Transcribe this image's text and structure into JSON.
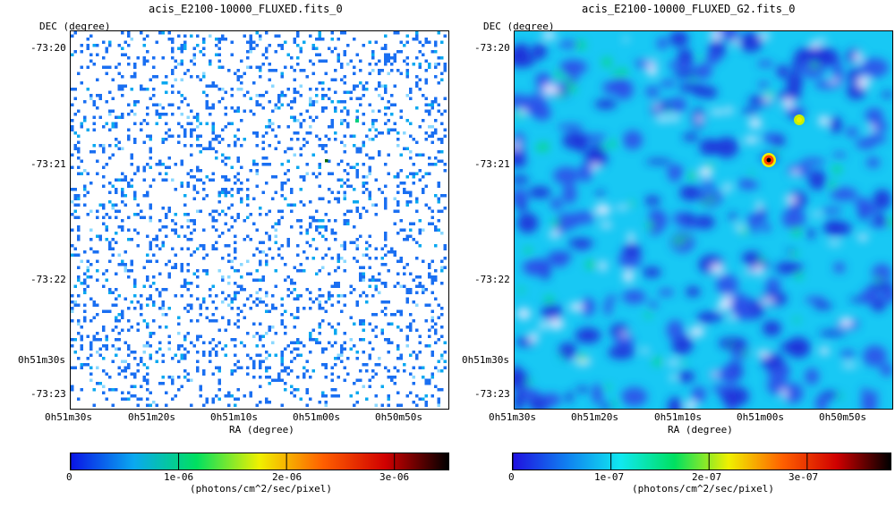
{
  "chart_data": [
    {
      "type": "heatmap",
      "title": "acis_E2100-10000_FLUXED.fits_0",
      "xlabel": "RA (degree)",
      "ylabel": "DEC (degree)",
      "x_ticks": [
        "0h51m30s",
        "0h51m20s",
        "0h51m10s",
        "0h51m00s",
        "0h50m50s"
      ],
      "y_ticks": [
        "-73:20",
        "-73:21",
        "-73:22",
        "0h51m30s",
        "-73:23"
      ],
      "colorbar": {
        "label": "(photons/cm^2/sec/pixel)",
        "range": [
          0,
          3.5e-06
        ],
        "ticks": [
          "0",
          "1e-06",
          "2e-06",
          "3e-06"
        ],
        "tick_values": [
          0,
          1e-06,
          2e-06,
          3e-06
        ]
      },
      "colormap": [
        "#0a14e6",
        "#0aa8f0",
        "#00e060",
        "#f0f000",
        "#ff6000",
        "#d00000",
        "#000000"
      ],
      "sources": [
        {
          "ra": "0h50m56s",
          "dec": "-73:20:38",
          "value": 4e-07
        },
        {
          "ra": "0h50m59s",
          "dec": "-73:20:58",
          "value": 1e-06
        }
      ]
    },
    {
      "type": "heatmap",
      "title": "acis_E2100-10000_FLUXED_G2.fits_0",
      "xlabel": "RA (degree)",
      "ylabel": "DEC (degree)",
      "x_ticks": [
        "0h51m30s",
        "0h51m20s",
        "0h51m10s",
        "0h51m00s",
        "0h50m50s"
      ],
      "y_ticks": [
        "-73:20",
        "-73:21",
        "-73:22",
        "0h51m30s",
        "-73:23"
      ],
      "colorbar": {
        "label": "(photons/cm^2/sec/pixel)",
        "range": [
          0,
          3.85e-07
        ],
        "ticks": [
          "0",
          "1e-07",
          "2e-07",
          "3e-07"
        ],
        "tick_values": [
          0,
          1e-07,
          2e-07,
          3e-07
        ]
      },
      "colormap": [
        "#2010e0",
        "#1080f0",
        "#10e8f0",
        "#00e060",
        "#f0f000",
        "#ff6000",
        "#d00000",
        "#000000"
      ],
      "sources": [
        {
          "ra": "0h50m59s",
          "dec": "-73:20:57",
          "value": 3.4e-07
        },
        {
          "ra": "0h50m56s",
          "dec": "-73:20:38",
          "value": 1.5e-07
        }
      ]
    }
  ]
}
